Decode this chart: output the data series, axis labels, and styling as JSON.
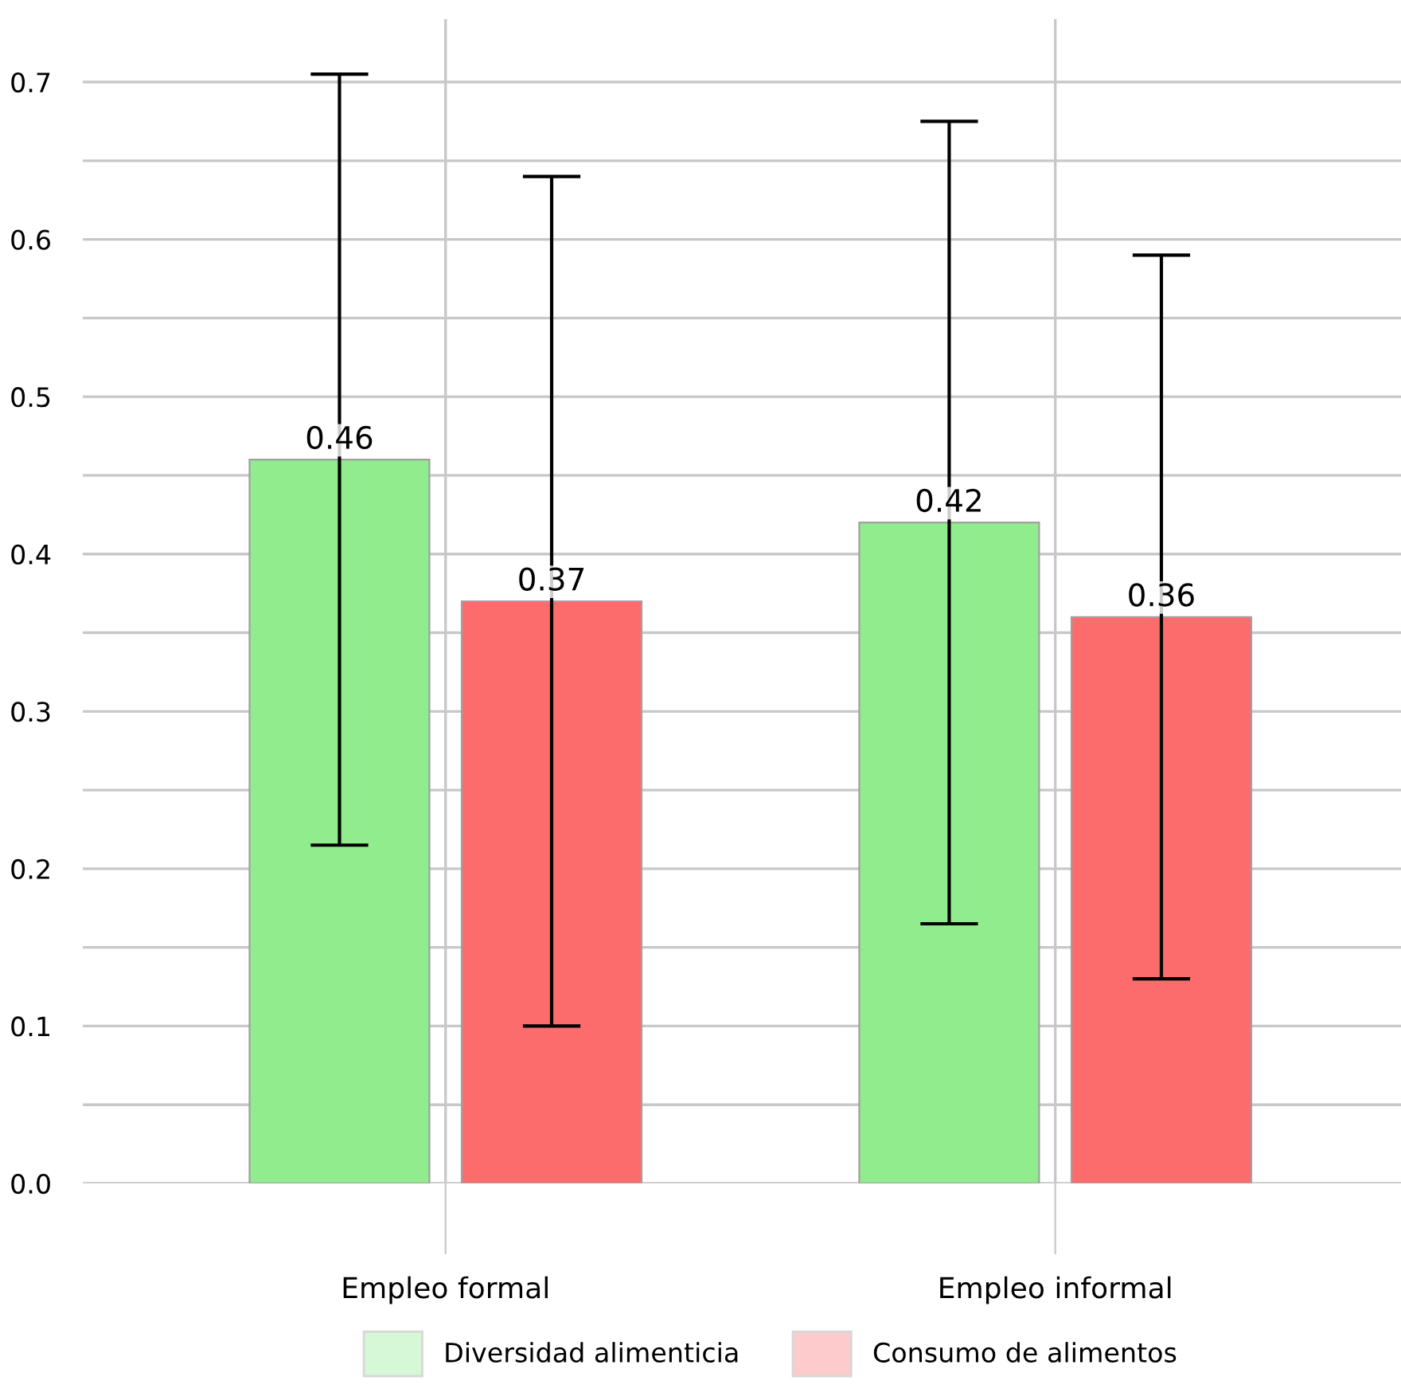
{
  "chart_data": {
    "type": "bar",
    "categories": [
      "Empleo formal",
      "Empleo informal"
    ],
    "series": [
      {
        "name": "Diversidad alimenticia",
        "color": "#90ec8c",
        "values": [
          0.46,
          0.42
        ],
        "errors": [
          0.245,
          0.255
        ]
      },
      {
        "name": "Consumo de alimentos",
        "color": "#fc6c6c",
        "values": [
          0.37,
          0.36
        ],
        "errors": [
          0.27,
          0.23
        ]
      }
    ],
    "ylim": [
      0,
      0.74
    ],
    "yticks": [
      {
        "value": 0,
        "label": "0.0"
      },
      {
        "value": 0.05,
        "label": null
      },
      0.1,
      {
        "value": 0.15,
        "label": null
      },
      0.2,
      {
        "value": 0.25,
        "label": null
      },
      0.3,
      {
        "value": 0.35,
        "label": null
      },
      0.4,
      {
        "value": 0.45,
        "label": null
      },
      0.5,
      {
        "value": 0.55,
        "label": null
      },
      0.6,
      {
        "value": 0.65,
        "label": null
      },
      0.7
    ],
    "grid": true,
    "data_labels": true,
    "legend": "bottom"
  }
}
